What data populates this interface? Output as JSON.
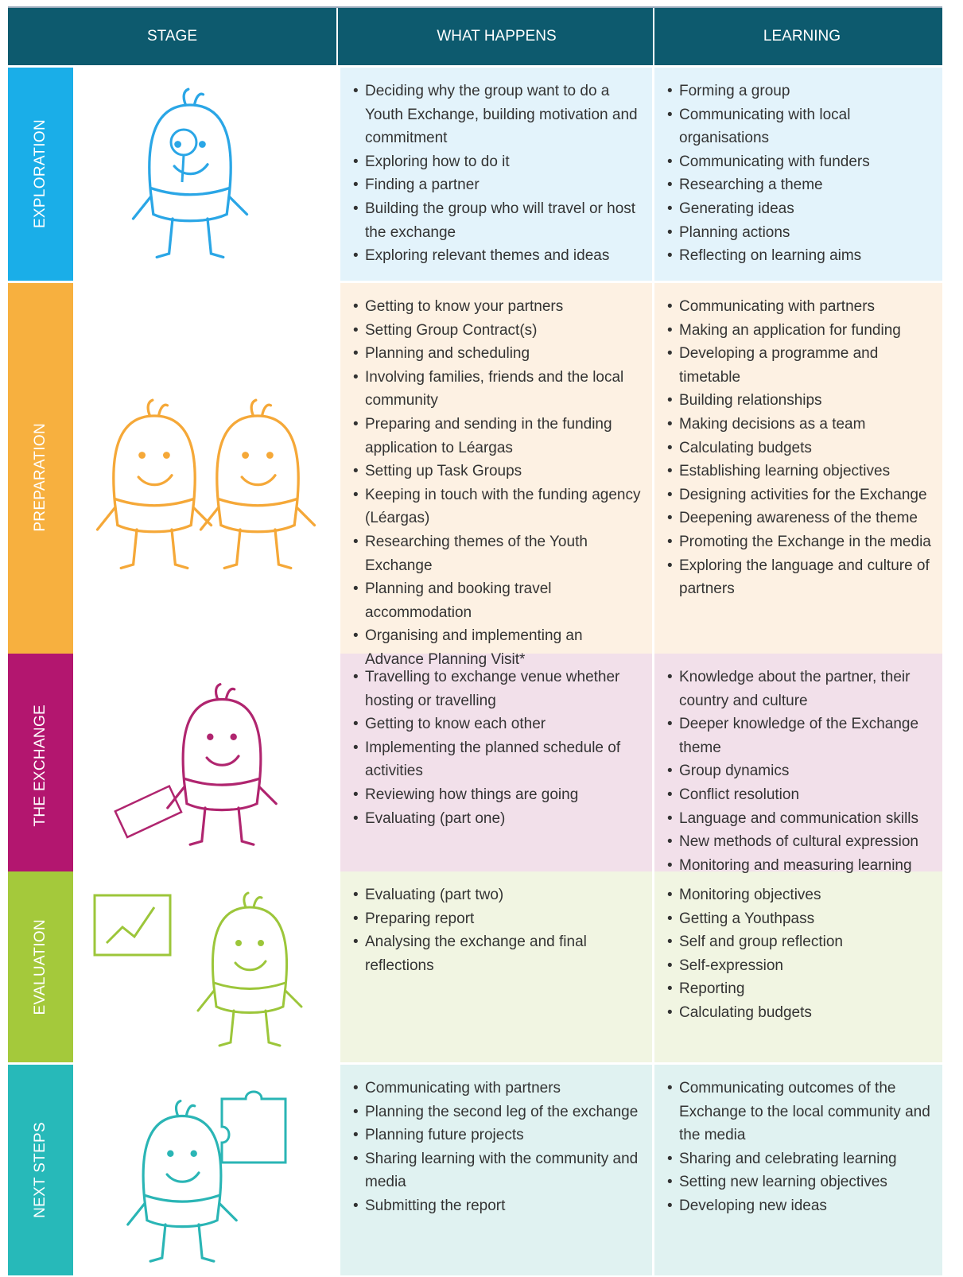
{
  "header": {
    "columns": [
      "STAGE",
      "WHAT HAPPENS",
      "LEARNING"
    ]
  },
  "rows": [
    {
      "stage": "EXPLORATION",
      "what_happens": [
        "Deciding why the group want to do a Youth Exchange, building motivation and commitment",
        "Exploring how to do it",
        "Finding a partner",
        "Building the group who will travel or host the exchange",
        "Exploring relevant themes and ideas"
      ],
      "learning": [
        "Forming a group",
        "Communicating with local organisations",
        "Communicating with funders",
        "Researching a theme",
        "Generating ideas",
        "Planning actions",
        "Reflecting on learning aims"
      ]
    },
    {
      "stage": "PREPARATION",
      "what_happens": [
        "Getting to know your partners",
        "Setting Group Contract(s)",
        "Planning and scheduling",
        "Involving families, friends and the local community",
        "Preparing and sending in the funding application to Léargas",
        "Setting up Task Groups",
        "Keeping in touch with the funding agency (Léargas)",
        "Researching themes of the Youth Exchange",
        "Planning and booking travel accommodation",
        "Organising and implementing an Advance Planning Visit*"
      ],
      "learning": [
        "Communicating with partners",
        "Making an application for funding",
        "Developing a programme and timetable",
        "Building relationships",
        "Making decisions as a team",
        "Calculating budgets",
        "Establishing learning objectives",
        "Designing activities for the Exchange",
        "Deepening awareness of the theme",
        "Promoting the Exchange in the media",
        "Exploring the language and culture of partners"
      ]
    },
    {
      "stage": "THE EXCHANGE",
      "what_happens": [
        "Travelling to exchange venue whether hosting or travelling",
        "Getting to know each other",
        "Implementing the planned schedule of activities",
        "Reviewing how things are going",
        "Evaluating (part one)"
      ],
      "learning": [
        "Knowledge about the partner, their country and culture",
        "Deeper knowledge of the Exchange theme",
        "Group dynamics",
        "Conflict resolution",
        "Language and communication skills",
        "New methods of cultural expression",
        "Monitoring and measuring learning"
      ]
    },
    {
      "stage": "EVALUATION",
      "what_happens": [
        "Evaluating (part two)",
        "Preparing report",
        "Analysing the exchange and final reflections"
      ],
      "learning": [
        "Monitoring objectives",
        "Getting a Youthpass",
        "Self and group reflection",
        "Self-expression",
        "Reporting",
        "Calculating budgets"
      ]
    },
    {
      "stage": "NEXT STEPS",
      "what_happens": [
        "Communicating with partners",
        "Planning the second leg of the exchange",
        "Planning future projects",
        "Sharing learning with the community and media",
        "Submitting the report"
      ],
      "learning": [
        "Communicating outcomes of the Exchange to the local community and the media",
        "Sharing and celebrating learning",
        "Setting new learning objectives",
        "Developing new ideas"
      ]
    }
  ]
}
